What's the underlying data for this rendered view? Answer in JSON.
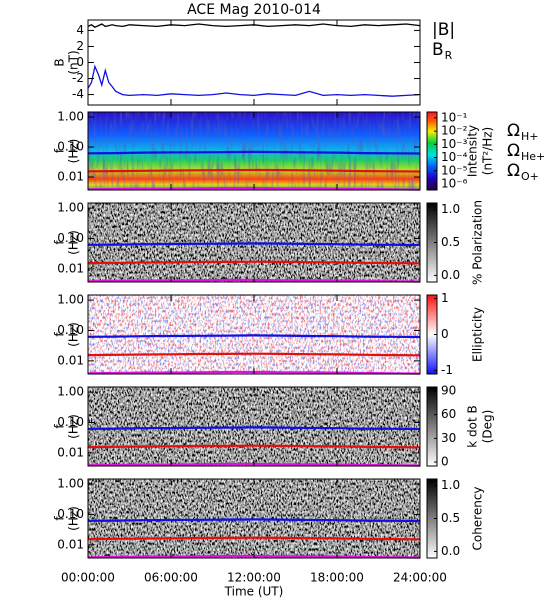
{
  "chart_data": {
    "type": "stacked-panels",
    "title": "ACE Mag 2010-014",
    "xlabel": "Time (UT)",
    "xlim": [
      0,
      24
    ],
    "xticks": [
      {
        "value": 0,
        "label": "00:00:00"
      },
      {
        "value": 6,
        "label": "06:00:00"
      },
      {
        "value": 12,
        "label": "12:00:00"
      },
      {
        "value": 18,
        "label": "18:00:00"
      },
      {
        "value": 24,
        "label": "24:00:00"
      }
    ],
    "panels": [
      {
        "type": "line",
        "ylabel": "B",
        "yunit": "(nT)",
        "ylim": [
          -5.3,
          5.3
        ],
        "yticks": [
          4,
          2,
          0,
          -2,
          -4
        ],
        "x": [
          0,
          0.25,
          0.5,
          0.75,
          1,
          1.25,
          1.5,
          1.75,
          2,
          2.5,
          3,
          4,
          5,
          6,
          7,
          8,
          9,
          10,
          11,
          12,
          13,
          14,
          15,
          16,
          17,
          18,
          19,
          20,
          21,
          22,
          23,
          24
        ],
        "series": [
          {
            "name": "|B|",
            "color": "#000000",
            "values": [
              4.5,
              4.7,
              4.4,
              4.6,
              4.8,
              4.5,
              4.6,
              4.7,
              4.6,
              4.5,
              4.7,
              4.6,
              4.5,
              4.7,
              4.6,
              4.8,
              4.6,
              4.5,
              4.6,
              4.7,
              4.5,
              4.6,
              4.7,
              4.6,
              4.8,
              4.6,
              4.5,
              4.7,
              4.6,
              4.7,
              4.8,
              4.6
            ]
          },
          {
            "name": "B",
            "sub": "R",
            "color": "#1010e0",
            "values": [
              -3.2,
              -2.5,
              -0.5,
              -1.5,
              -2.8,
              -1.0,
              -2.5,
              -3.0,
              -3.6,
              -4.0,
              -4.1,
              -4.0,
              -4.1,
              -3.9,
              -4.0,
              -4.1,
              -4.0,
              -3.8,
              -4.0,
              -4.1,
              -3.9,
              -4.0,
              -4.1,
              -3.6,
              -4.1,
              -4.0,
              -4.1,
              -4.0,
              -4.1,
              -4.2,
              -4.1,
              -4.0
            ]
          }
        ]
      },
      {
        "type": "spectrogram",
        "ylabel": "f",
        "yunit": "(Hz)",
        "log": true,
        "ylim": [
          0.0037,
          1.47
        ],
        "yticks": [
          {
            "value": 1,
            "label": "1.00"
          },
          {
            "value": 0.1,
            "label": "0.10"
          },
          {
            "value": 0.01,
            "label": "0.01"
          }
        ],
        "colorbar": {
          "label": "Intensity",
          "unit": "(nT²/Hz)",
          "colormap": "rainbow",
          "log": true,
          "clim": [
            3.5e-07,
            0.28
          ],
          "ticks": [
            {
              "value": 0.1,
              "label": "10⁻¹"
            },
            {
              "value": 0.01,
              "label": "10⁻²"
            },
            {
              "value": 0.001,
              "label": "10⁻³"
            },
            {
              "value": 0.0001,
              "label": "10⁻⁴"
            },
            {
              "value": 1e-05,
              "label": "10⁻⁵"
            },
            {
              "value": 1e-06,
              "label": "10⁻⁶"
            }
          ]
        },
        "x": [
          0,
          2,
          4,
          6,
          8,
          10,
          12,
          14,
          16,
          18,
          20,
          22,
          24
        ],
        "series": [
          {
            "name": "Ω",
            "sub": "H+",
            "color": "#1010e0",
            "values": [
              0.062,
              0.063,
              0.065,
              0.066,
              0.067,
              0.068,
              0.069,
              0.068,
              0.066,
              0.065,
              0.063,
              0.062,
              0.061
            ]
          },
          {
            "name": "Ω",
            "sub": "He+",
            "color": "#e01010",
            "values": [
              0.0155,
              0.0158,
              0.0162,
              0.0165,
              0.0168,
              0.017,
              0.0172,
              0.017,
              0.0166,
              0.0163,
              0.0158,
              0.0155,
              0.0153
            ]
          },
          {
            "name": "Ω",
            "sub": "O+",
            "color": "#e010e0",
            "values": [
              0.0039,
              0.004,
              0.0041,
              0.0041,
              0.0042,
              0.0043,
              0.0043,
              0.0042,
              0.0042,
              0.0041,
              0.004,
              0.0039,
              0.0038
            ]
          }
        ]
      },
      {
        "type": "spectrogram",
        "ylabel": "f",
        "yunit": "(Hz)",
        "log": true,
        "ylim": [
          0.0037,
          1.47
        ],
        "yticks": [
          {
            "value": 1,
            "label": "1.00"
          },
          {
            "value": 0.1,
            "label": "0.10"
          },
          {
            "value": 0.01,
            "label": "0.01"
          }
        ],
        "colorbar": {
          "label": "% Polarization",
          "colormap": "gray",
          "clim": [
            -0.1,
            1.1
          ],
          "ticks": [
            {
              "value": 1,
              "label": "1.0"
            },
            0.5,
            {
              "value": 0,
              "label": "0.0"
            }
          ]
        },
        "x": [
          0,
          2,
          4,
          6,
          8,
          10,
          12,
          14,
          16,
          18,
          20,
          22,
          24
        ],
        "series": [
          {
            "color": "#1010e0",
            "values": [
              0.062,
              0.063,
              0.065,
              0.066,
              0.067,
              0.068,
              0.069,
              0.068,
              0.066,
              0.065,
              0.063,
              0.062,
              0.061
            ]
          },
          {
            "color": "#e01010",
            "values": [
              0.0155,
              0.0158,
              0.0162,
              0.0165,
              0.0168,
              0.017,
              0.0172,
              0.017,
              0.0166,
              0.0163,
              0.0158,
              0.0155,
              0.0153
            ]
          },
          {
            "color": "#e010e0",
            "values": [
              0.0039,
              0.004,
              0.0041,
              0.0041,
              0.0042,
              0.0043,
              0.0043,
              0.0042,
              0.0042,
              0.0041,
              0.004,
              0.0039,
              0.0038
            ]
          }
        ]
      },
      {
        "type": "spectrogram",
        "ylabel": "f",
        "yunit": "(Hz)",
        "log": true,
        "ylim": [
          0.0037,
          1.47
        ],
        "yticks": [
          {
            "value": 1,
            "label": "1.00"
          },
          {
            "value": 0.1,
            "label": "0.10"
          },
          {
            "value": 0.01,
            "label": "0.01"
          }
        ],
        "colorbar": {
          "label": "Ellipticity",
          "colormap": "bwr",
          "clim": [
            -1.1,
            1.1
          ],
          "ticks": [
            1,
            0,
            -1
          ]
        },
        "x": [
          0,
          2,
          4,
          6,
          8,
          10,
          12,
          14,
          16,
          18,
          20,
          22,
          24
        ],
        "series": [
          {
            "color": "#1010e0",
            "values": [
              0.062,
              0.063,
              0.065,
              0.066,
              0.067,
              0.068,
              0.069,
              0.068,
              0.066,
              0.065,
              0.063,
              0.062,
              0.061
            ]
          },
          {
            "color": "#e01010",
            "values": [
              0.0155,
              0.0158,
              0.0162,
              0.0165,
              0.0168,
              0.017,
              0.0172,
              0.017,
              0.0166,
              0.0163,
              0.0158,
              0.0155,
              0.0153
            ]
          },
          {
            "color": "#e010e0",
            "values": [
              0.0039,
              0.004,
              0.0041,
              0.0041,
              0.0042,
              0.0043,
              0.0043,
              0.0042,
              0.0042,
              0.0041,
              0.004,
              0.0039,
              0.0038
            ]
          }
        ]
      },
      {
        "type": "spectrogram",
        "ylabel": "f",
        "yunit": "(Hz)",
        "log": true,
        "ylim": [
          0.0037,
          1.47
        ],
        "yticks": [
          {
            "value": 1,
            "label": "1.00"
          },
          {
            "value": 0.1,
            "label": "0.10"
          },
          {
            "value": 0.01,
            "label": "0.01"
          }
        ],
        "colorbar": {
          "label": "k dot B",
          "unit": "(Deg)",
          "colormap": "gray",
          "clim": [
            -5,
            95
          ],
          "ticks": [
            90,
            60,
            30,
            0
          ]
        },
        "x": [
          0,
          2,
          4,
          6,
          8,
          10,
          12,
          14,
          16,
          18,
          20,
          22,
          24
        ],
        "series": [
          {
            "color": "#1010e0",
            "values": [
              0.062,
              0.063,
              0.065,
              0.066,
              0.067,
              0.068,
              0.069,
              0.068,
              0.066,
              0.065,
              0.063,
              0.062,
              0.061
            ]
          },
          {
            "color": "#e01010",
            "values": [
              0.0155,
              0.0158,
              0.0162,
              0.0165,
              0.0168,
              0.017,
              0.0172,
              0.017,
              0.0166,
              0.0163,
              0.0158,
              0.0155,
              0.0153
            ]
          },
          {
            "color": "#e010e0",
            "values": [
              0.0039,
              0.004,
              0.0041,
              0.0041,
              0.0042,
              0.0043,
              0.0043,
              0.0042,
              0.0042,
              0.0041,
              0.004,
              0.0039,
              0.0038
            ]
          }
        ]
      },
      {
        "type": "spectrogram",
        "ylabel": "f",
        "yunit": "(Hz)",
        "log": true,
        "ylim": [
          0.0037,
          1.47
        ],
        "yticks": [
          {
            "value": 1,
            "label": "1.00"
          },
          {
            "value": 0.1,
            "label": "0.10"
          },
          {
            "value": 0.01,
            "label": "0.01"
          }
        ],
        "colorbar": {
          "label": "Coherency",
          "colormap": "gray",
          "clim": [
            -0.1,
            1.1
          ],
          "ticks": [
            {
              "value": 1,
              "label": "1.0"
            },
            0.5,
            {
              "value": 0,
              "label": "0.0"
            }
          ]
        },
        "x": [
          0,
          2,
          4,
          6,
          8,
          10,
          12,
          14,
          16,
          18,
          20,
          22,
          24
        ],
        "series": [
          {
            "color": "#1010e0",
            "values": [
              0.062,
              0.063,
              0.065,
              0.066,
              0.067,
              0.068,
              0.069,
              0.068,
              0.066,
              0.065,
              0.063,
              0.062,
              0.061
            ]
          },
          {
            "color": "#e01010",
            "values": [
              0.0155,
              0.0158,
              0.0162,
              0.0165,
              0.0168,
              0.017,
              0.0172,
              0.017,
              0.0166,
              0.0163,
              0.0158,
              0.0155,
              0.0153
            ]
          },
          {
            "color": "#e010e0",
            "values": [
              0.0039,
              0.004,
              0.0041,
              0.0041,
              0.0042,
              0.0043,
              0.0043,
              0.0042,
              0.0042,
              0.0041,
              0.004,
              0.0039,
              0.0038
            ]
          }
        ]
      }
    ]
  }
}
